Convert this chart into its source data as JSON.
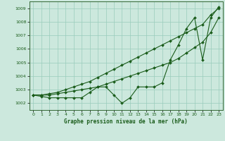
{
  "title": "Graphe pression niveau de la mer (hPa)",
  "background_color": "#cce8dd",
  "grid_color": "#99ccbb",
  "line_color": "#1a5c1a",
  "plot_bg": "#cce8dd",
  "xlim": [
    -0.5,
    23.5
  ],
  "ylim": [
    1001.5,
    1009.5
  ],
  "yticks": [
    1002,
    1003,
    1004,
    1005,
    1006,
    1007,
    1008,
    1009
  ],
  "xticks": [
    0,
    1,
    2,
    3,
    4,
    5,
    6,
    7,
    8,
    9,
    10,
    11,
    12,
    13,
    14,
    15,
    16,
    17,
    18,
    19,
    20,
    21,
    22,
    23
  ],
  "line1_x": [
    0,
    1,
    2,
    3,
    4,
    5,
    6,
    7,
    8,
    9,
    10,
    11,
    12,
    13,
    14,
    15,
    16,
    17,
    18,
    19,
    20,
    21,
    22,
    23
  ],
  "line1_y": [
    1002.6,
    1002.6,
    1002.7,
    1002.8,
    1003.0,
    1003.2,
    1003.4,
    1003.6,
    1003.9,
    1004.2,
    1004.5,
    1004.8,
    1005.1,
    1005.4,
    1005.7,
    1006.0,
    1006.3,
    1006.6,
    1006.9,
    1007.2,
    1007.5,
    1007.8,
    1008.5,
    1009.0
  ],
  "line2_x": [
    0,
    1,
    2,
    3,
    4,
    5,
    6,
    7,
    8,
    9,
    10,
    11,
    12,
    13,
    14,
    15,
    16,
    17,
    18,
    19,
    20,
    21,
    22,
    23
  ],
  "line2_y": [
    1002.6,
    1002.6,
    1002.6,
    1002.7,
    1002.8,
    1002.9,
    1003.0,
    1003.1,
    1003.2,
    1003.4,
    1003.6,
    1003.8,
    1004.0,
    1004.2,
    1004.4,
    1004.6,
    1004.8,
    1005.0,
    1005.3,
    1005.7,
    1006.1,
    1006.5,
    1007.2,
    1008.3
  ],
  "line3_x": [
    0,
    1,
    2,
    3,
    4,
    5,
    6,
    7,
    8,
    9,
    10,
    11,
    12,
    13,
    14,
    15,
    16,
    17,
    18,
    19,
    20,
    21,
    22,
    23
  ],
  "line3_y": [
    1002.6,
    1002.5,
    1002.4,
    1002.4,
    1002.4,
    1002.4,
    1002.4,
    1002.8,
    1003.2,
    1003.2,
    1002.6,
    1002.0,
    1002.4,
    1003.2,
    1003.2,
    1003.2,
    1003.5,
    1005.2,
    1006.3,
    1007.5,
    1008.3,
    1005.2,
    1008.3,
    1009.1
  ]
}
